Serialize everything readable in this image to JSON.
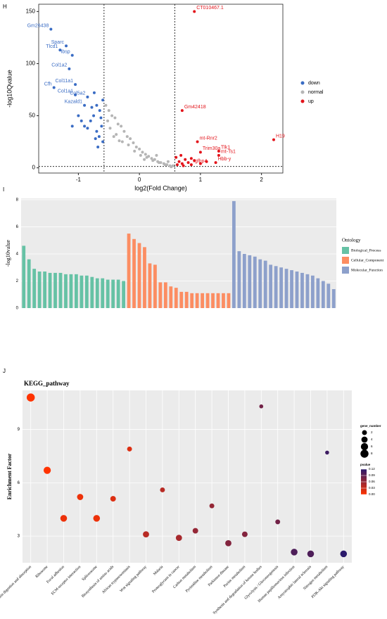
{
  "chart_data": [
    {
      "type": "scatter",
      "panel_label": "H",
      "x_label": "log2(Fold Change)",
      "y_label": "-log10Qvalue",
      "xlim": [
        -1.65,
        2.35
      ],
      "ylim": [
        -5,
        157
      ],
      "xticks": [
        -1,
        0,
        1,
        2
      ],
      "yticks": [
        0,
        50,
        100,
        150
      ],
      "vlines": [
        -0.58,
        0.58
      ],
      "hline": 1.3,
      "series": [
        {
          "name": "down",
          "color": "#3a6cc4",
          "x": [
            -1.45,
            -1.2,
            -1.3,
            -1.1,
            -1.15,
            -1.05,
            -1.4,
            -1.05,
            -0.85,
            -0.9,
            -0.7,
            -0.65,
            -0.75,
            -0.8,
            -0.62,
            -0.7,
            -0.9,
            -1.0,
            -0.66,
            -0.6,
            -0.72,
            -0.85,
            -0.63,
            -0.78,
            -1.1,
            -0.68,
            -0.95,
            -0.6,
            -0.74
          ],
          "values": [
            133,
            117,
            113,
            108,
            95,
            80,
            77,
            70,
            68,
            60,
            60,
            55,
            50,
            45,
            40,
            35,
            40,
            50,
            30,
            25,
            28,
            38,
            48,
            58,
            40,
            20,
            45,
            65,
            72
          ],
          "labels": [
            "Gm26438",
            "Sparc",
            "Tlcd1",
            "Ibsp",
            "Col1a2",
            "Col11a1",
            "Cfh",
            "Col1a1",
            "Col5a2",
            "Kazald1",
            null,
            null,
            null,
            null,
            null,
            null,
            null,
            null,
            null,
            null,
            null,
            null,
            null,
            null,
            null,
            null,
            null,
            null,
            null
          ]
        },
        {
          "name": "normal",
          "color": "#b5b5b5",
          "x": [
            -0.55,
            -0.5,
            -0.45,
            -0.52,
            -0.4,
            -0.35,
            -0.48,
            -0.3,
            -0.25,
            -0.38,
            -0.2,
            -0.15,
            -0.28,
            -0.1,
            -0.05,
            -0.18,
            0.0,
            0.05,
            -0.08,
            0.1,
            0.15,
            0.02,
            0.2,
            0.25,
            0.12,
            0.3,
            0.35,
            0.22,
            0.4,
            0.45,
            0.32,
            0.5,
            0.55,
            0.42,
            0.52,
            -0.42,
            -0.33,
            0.08,
            0.28,
            0.47
          ],
          "values": [
            60,
            55,
            50,
            45,
            48,
            42,
            38,
            40,
            35,
            32,
            30,
            28,
            25,
            24,
            20,
            22,
            18,
            15,
            16,
            13,
            11,
            12,
            9,
            8,
            10,
            6,
            5,
            7,
            4,
            3,
            5,
            2,
            2,
            3,
            1,
            30,
            26,
            8,
            12,
            6
          ]
        },
        {
          "name": "up",
          "color": "#e3141b",
          "x": [
            0.9,
            0.7,
            0.95,
            1.3,
            1.0,
            1.3,
            2.2,
            1.25,
            0.85,
            0.6,
            0.65,
            0.7,
            0.75,
            0.8,
            0.62,
            0.9,
            1.0,
            1.1,
            0.68,
            0.72,
            0.85
          ],
          "values": [
            150,
            55,
            25,
            16,
            15,
            12,
            27,
            5,
            3,
            10,
            6,
            4,
            8,
            5,
            3,
            7,
            4,
            6,
            12,
            2,
            9
          ],
          "labels": [
            "CT010467.1",
            "Gm42418",
            "mt-Rnr2",
            "Tlk1",
            "Trim30a",
            "mt-Ts1",
            "H19",
            "Hbb-y",
            "Igfbp4",
            null,
            null,
            null,
            null,
            null,
            null,
            null,
            null,
            null,
            null,
            null,
            null
          ]
        }
      ]
    },
    {
      "type": "bar",
      "panel_label": "I",
      "y_label": "-log10value",
      "legend_title": "Ontology",
      "ylim": [
        0,
        8.1
      ],
      "yticks": [
        0,
        2,
        4,
        6,
        8
      ],
      "grid": true,
      "series": [
        {
          "name": "Biological_Process",
          "color": "#66c2a5",
          "values": [
            4.6,
            3.6,
            2.9,
            2.7,
            2.7,
            2.6,
            2.6,
            2.6,
            2.5,
            2.5,
            2.5,
            2.4,
            2.4,
            2.3,
            2.2,
            2.2,
            2.1,
            2.1,
            2.1,
            2.0
          ]
        },
        {
          "name": "Cellular_Component",
          "color": "#fc8d62",
          "values": [
            5.5,
            5.1,
            4.8,
            4.5,
            3.3,
            3.2,
            1.9,
            1.9,
            1.6,
            1.5,
            1.2,
            1.2,
            1.1,
            1.1,
            1.1,
            1.1,
            1.1,
            1.1,
            1.1,
            1.1
          ]
        },
        {
          "name": "Molecular_Function",
          "color": "#8da0cb",
          "values": [
            7.9,
            4.2,
            4.0,
            3.9,
            3.8,
            3.6,
            3.5,
            3.2,
            3.1,
            3.0,
            2.9,
            2.8,
            2.7,
            2.6,
            2.5,
            2.4,
            2.2,
            2.0,
            1.8,
            1.4
          ]
        }
      ]
    },
    {
      "type": "bubble",
      "panel_label": "J",
      "title": "KEGG_pathway",
      "y_label": "Enrichment Factor",
      "ylim": [
        1.5,
        11.2
      ],
      "yticks": [
        3,
        6,
        9
      ],
      "grid": true,
      "categories": [
        "Protein digestion and absorption",
        "Ribosome",
        "Focal adhesion",
        "ECM-receptor interaction",
        "Spliceosome",
        "Biosynthesis of amino acids",
        "African trypanosomiasis",
        "Wnt signaling pathway",
        "Malaria",
        "Proteoglycans in cancer",
        "Carbon metabolism",
        "Pyrimidine metabolism",
        "Parkinson disease",
        "Purine metabolism",
        "Synthesis and degradation of ketone bodies",
        "Glycolysis / Gluconeogenesis",
        "Human papillomavirus infection",
        "Amyotrophic lateral sclerosis",
        "Nitrogen metabolism",
        "PI3K-Akt signaling pathway"
      ],
      "values": [
        10.8,
        6.7,
        4.0,
        5.2,
        4.0,
        5.1,
        7.9,
        3.1,
        5.6,
        2.9,
        3.3,
        4.7,
        2.6,
        3.1,
        10.3,
        3.8,
        2.1,
        2.0,
        7.7,
        2.0
      ],
      "gene_number": [
        8,
        6,
        5,
        4,
        5,
        3,
        2,
        4,
        2,
        4,
        3,
        2,
        4,
        3,
        1,
        2,
        5,
        5,
        1,
        5
      ],
      "pvalue": [
        0.0,
        0.0,
        0.01,
        0.01,
        0.01,
        0.02,
        0.02,
        0.04,
        0.04,
        0.05,
        0.06,
        0.06,
        0.07,
        0.07,
        0.08,
        0.08,
        0.1,
        0.1,
        0.11,
        0.12
      ],
      "size_legend_title": "gene_number",
      "size_ticks": [
        2,
        4,
        6,
        8
      ],
      "color_legend_title": "pvalue",
      "color_range": [
        "#ff3300",
        "#2b1a6b"
      ],
      "color_lim": [
        0,
        0.12
      ],
      "color_ticks": [
        {
          "value": 0.12,
          "label": "0.12"
        },
        {
          "value": 0.09,
          "label": "0.09"
        },
        {
          "value": 0.06,
          "label": "0.06"
        },
        {
          "value": 0.03,
          "label": "0.03"
        },
        {
          "value": 0,
          "label": "0.00"
        }
      ]
    }
  ]
}
